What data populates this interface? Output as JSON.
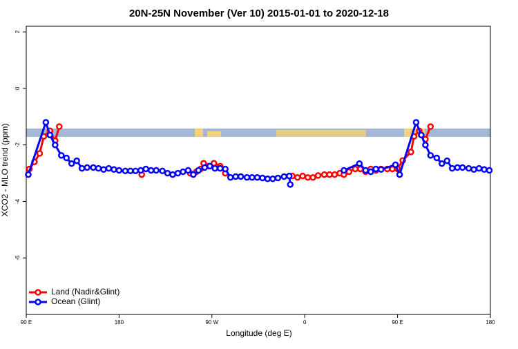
{
  "chart_data": {
    "type": "line",
    "title": "20N-25N November (Ver 10)   2015-01-01 to 2020-12-18",
    "x_label": "Longitude (deg E)",
    "y_label": "XCO2 - MLO trend (ppm)",
    "xlim": [
      90,
      540
    ],
    "ylim": [
      -8,
      2.2
    ],
    "xticks": [
      {
        "value": 90,
        "label": "90 E"
      },
      {
        "value": 180,
        "label": "180"
      },
      {
        "value": 270,
        "label": "90 W"
      },
      {
        "value": 360,
        "label": "0"
      },
      {
        "value": 450,
        "label": "90 E"
      },
      {
        "value": 540,
        "label": "180"
      }
    ],
    "yticks": [
      -6,
      -4,
      -2,
      0,
      2
    ],
    "legend": "bottom-left",
    "series": [
      {
        "name": "Land (Nadir&Glint)",
        "color": "#ff0000",
        "x": [
          93,
          98,
          103,
          107,
          113,
          118,
          122,
          160,
          202,
          240,
          249,
          255,
          259,
          262,
          267,
          272,
          278,
          283,
          320,
          348,
          353,
          358,
          363,
          368,
          373,
          379,
          384,
          389,
          394,
          398,
          403,
          409,
          414,
          419,
          424,
          429,
          434,
          440,
          445,
          450,
          455,
          463,
          466,
          471,
          477,
          482
        ],
        "values": [
          -2.85,
          -2.6,
          -2.3,
          -1.7,
          -1.5,
          -1.85,
          -1.35,
          null,
          -3.05,
          null,
          -3.0,
          -2.95,
          -2.85,
          -2.65,
          -2.75,
          -2.65,
          -2.75,
          -3.0,
          null,
          -3.1,
          -3.15,
          -3.1,
          -3.15,
          -3.15,
          -3.08,
          -3.05,
          -3.05,
          -3.05,
          -3.0,
          -3.05,
          -2.95,
          -2.85,
          -2.85,
          -2.95,
          -2.85,
          -2.9,
          -2.85,
          -2.85,
          -2.85,
          -2.85,
          -2.55,
          -2.25,
          -1.7,
          -1.5,
          -1.8,
          -1.35
        ]
      },
      {
        "name": "Ocean (Glint)",
        "color": "#0000ff",
        "x": [
          92,
          109,
          113,
          118,
          124,
          129,
          134,
          139,
          144,
          149,
          155,
          160,
          165,
          170,
          175,
          180,
          186,
          191,
          196,
          201,
          206,
          211,
          216,
          222,
          227,
          232,
          237,
          242,
          247,
          252,
          257,
          263,
          268,
          273,
          278,
          283,
          288,
          293,
          298,
          304,
          309,
          314,
          319,
          324,
          329,
          334,
          340,
          345,
          346,
          370,
          398,
          413,
          419,
          424,
          429,
          434,
          448,
          452,
          468,
          473,
          477,
          482,
          488,
          493,
          498,
          503,
          508,
          513,
          519,
          524,
          529,
          534,
          539
        ],
        "values": [
          -3.05,
          -1.2,
          -1.65,
          -2.0,
          -2.37,
          -2.46,
          -2.66,
          -2.56,
          -2.83,
          -2.8,
          -2.8,
          -2.83,
          -2.87,
          -2.83,
          -2.87,
          -2.9,
          -2.92,
          -2.92,
          -2.92,
          -2.9,
          -2.85,
          -2.9,
          -2.9,
          -2.92,
          -3.0,
          -3.05,
          -3.0,
          -2.95,
          -2.9,
          -3.05,
          -2.9,
          -2.8,
          -2.75,
          -2.83,
          -2.83,
          -2.85,
          -3.15,
          -3.12,
          -3.12,
          -3.15,
          -3.15,
          -3.15,
          -3.17,
          -3.2,
          -3.2,
          -3.17,
          -3.12,
          -3.1,
          -3.4,
          null,
          -2.9,
          -2.66,
          -2.9,
          -2.95,
          -2.85,
          -2.87,
          -2.7,
          -3.05,
          -1.2,
          -1.65,
          -2.0,
          -2.37,
          -2.46,
          -2.66,
          -2.56,
          -2.83,
          -2.8,
          -2.8,
          -2.83,
          -2.87,
          -2.83,
          -2.87,
          -2.9
        ]
      }
    ]
  }
}
